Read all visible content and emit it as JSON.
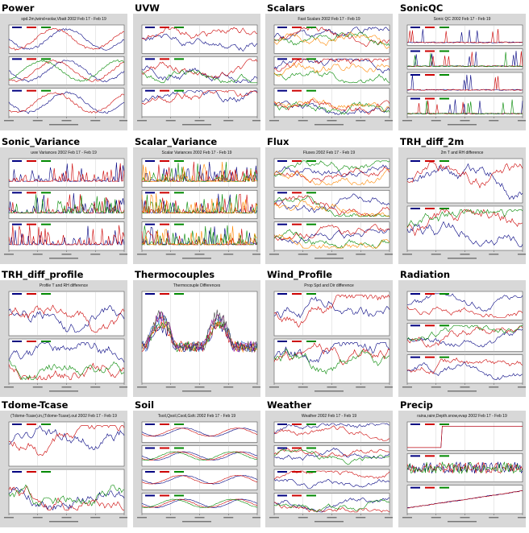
{
  "gallery": {
    "cells": [
      {
        "title": "Power",
        "plot_title": "spd.2m,twind+solar,Vbatt 2002 Feb 17 - Feb 19",
        "panels": 3,
        "kind": "power"
      },
      {
        "title": "UVW",
        "plot_title": "",
        "panels": 3,
        "kind": "noisy"
      },
      {
        "title": "Scalars",
        "plot_title": "Fast Scalars 2002 Feb 17 - Feb 19",
        "panels": 3,
        "kind": "scalars"
      },
      {
        "title": "SonicQC",
        "plot_title": "Sonic QC 2002 Feb 17 - Feb 19",
        "panels": 4,
        "kind": "spikes"
      },
      {
        "title": "Sonic_Variance",
        "plot_title": "uvw Variances 2002 Feb 17 - Feb 19",
        "panels": 3,
        "kind": "variance"
      },
      {
        "title": "Scalar_Variance",
        "plot_title": "Scalar Variances 2002 Feb 17 - Feb 19",
        "panels": 3,
        "kind": "scalarvar"
      },
      {
        "title": "Flux",
        "plot_title": "Fluxes 2002 Feb 17 - Feb 19",
        "panels": 3,
        "kind": "flux"
      },
      {
        "title": "TRH_diff_2m",
        "plot_title": "2m T and RH difference",
        "panels": 2,
        "kind": "diff"
      },
      {
        "title": "TRH_diff_profile",
        "plot_title": "Profile T and RH difference",
        "panels": 2,
        "kind": "profile"
      },
      {
        "title": "Thermocouples",
        "plot_title": "Thermocouple Differences",
        "panels": 1,
        "kind": "thermo"
      },
      {
        "title": "Wind_Profile",
        "plot_title": "Prop Spd and Dir difference",
        "panels": 2,
        "kind": "wind"
      },
      {
        "title": "Radiation",
        "plot_title": "",
        "panels": 3,
        "kind": "radiation"
      },
      {
        "title": "Tdome-Tcase",
        "plot_title": "(Tdome-Tcase).in,(Tdome-Tcase).out 2002 Feb 17 - Feb 19",
        "panels": 2,
        "kind": "tdome"
      },
      {
        "title": "Soil",
        "plot_title": "Tsoil,Qsoil,Csoil,Gsfc 2002 Feb 17 - Feb 19",
        "panels": 4,
        "kind": "soil"
      },
      {
        "title": "Weather",
        "plot_title": "Weather 2002 Feb 17 - Feb 19",
        "panels": 4,
        "kind": "weather"
      },
      {
        "title": "Precip",
        "plot_title": "raina,rainr,Depth.snow,evap 2002 Feb 17 - Feb 19",
        "panels": 3,
        "kind": "precip"
      }
    ]
  },
  "colors": {
    "plot_bg": "#d8d8d8",
    "panel_bg": "#ffffff",
    "axis": "#555555",
    "series": [
      "#000080",
      "#cc0000",
      "#008800",
      "#ff8800",
      "#3366cc",
      "#990099",
      "#444444"
    ]
  }
}
